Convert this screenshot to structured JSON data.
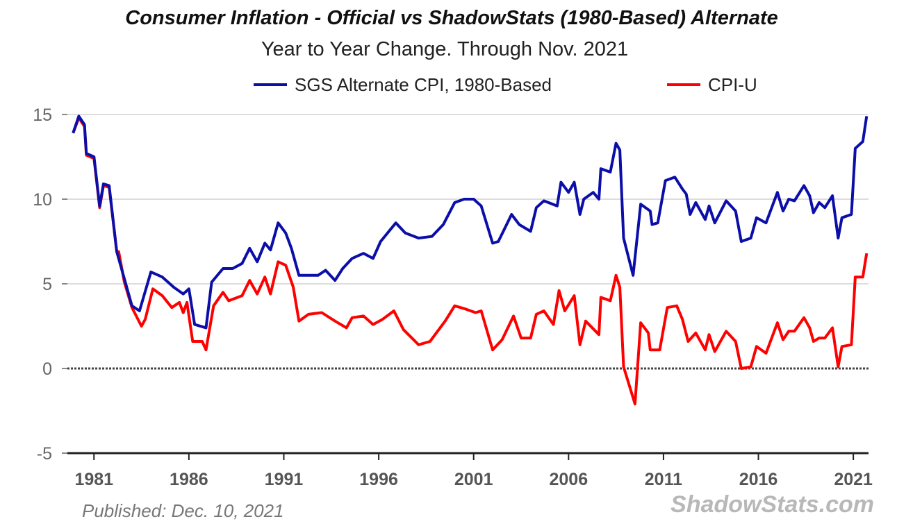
{
  "chart_data": {
    "type": "line",
    "title": "Consumer Inflation - Official vs ShadowStats (1980-Based) Alternate",
    "subtitle": "Year to Year Change. Through Nov. 2021",
    "xlabel": "",
    "ylabel": "",
    "xlim": [
      1979.6,
      2021.8
    ],
    "ylim": [
      -5,
      15
    ],
    "x_ticks": [
      1981,
      1986,
      1991,
      1996,
      2001,
      2006,
      2011,
      2016,
      2021
    ],
    "y_ticks": [
      -5,
      0,
      5,
      10,
      15
    ],
    "grid": "horizontal",
    "legend_position": "top",
    "footer_left": "Published: Dec. 10, 2021",
    "footer_right": "ShadowStats.com",
    "series": [
      {
        "name": "SGS Alternate CPI, 1980-Based",
        "color": "#0b0fa8",
        "points": [
          [
            1979.9,
            13.9
          ],
          [
            1980.2,
            14.9
          ],
          [
            1980.5,
            14.4
          ],
          [
            1980.6,
            12.7
          ],
          [
            1981.0,
            12.5
          ],
          [
            1981.3,
            9.6
          ],
          [
            1981.5,
            10.9
          ],
          [
            1981.8,
            10.8
          ],
          [
            1982.2,
            6.9
          ],
          [
            1983.0,
            3.7
          ],
          [
            1983.4,
            3.4
          ],
          [
            1984.0,
            5.7
          ],
          [
            1984.6,
            5.4
          ],
          [
            1985.2,
            4.8
          ],
          [
            1985.7,
            4.4
          ],
          [
            1986.0,
            4.7
          ],
          [
            1986.3,
            2.6
          ],
          [
            1986.9,
            2.4
          ],
          [
            1987.2,
            5.1
          ],
          [
            1987.8,
            5.9
          ],
          [
            1988.3,
            5.9
          ],
          [
            1988.8,
            6.2
          ],
          [
            1989.2,
            7.1
          ],
          [
            1989.6,
            6.3
          ],
          [
            1990.0,
            7.4
          ],
          [
            1990.3,
            7.0
          ],
          [
            1990.7,
            8.6
          ],
          [
            1991.1,
            8.0
          ],
          [
            1991.4,
            7.1
          ],
          [
            1991.8,
            5.5
          ],
          [
            1992.3,
            5.5
          ],
          [
            1992.8,
            5.5
          ],
          [
            1993.2,
            5.8
          ],
          [
            1993.7,
            5.2
          ],
          [
            1994.1,
            5.9
          ],
          [
            1994.6,
            6.5
          ],
          [
            1995.2,
            6.8
          ],
          [
            1995.7,
            6.5
          ],
          [
            1996.1,
            7.5
          ],
          [
            1996.9,
            8.6
          ],
          [
            1997.4,
            8.0
          ],
          [
            1998.1,
            7.7
          ],
          [
            1998.8,
            7.8
          ],
          [
            1999.4,
            8.5
          ],
          [
            2000.0,
            9.8
          ],
          [
            2000.5,
            10.0
          ],
          [
            2001.0,
            10.0
          ],
          [
            2001.4,
            9.6
          ],
          [
            2002.0,
            7.4
          ],
          [
            2002.3,
            7.5
          ],
          [
            2003.0,
            9.1
          ],
          [
            2003.4,
            8.5
          ],
          [
            2004.0,
            8.1
          ],
          [
            2004.3,
            9.5
          ],
          [
            2004.7,
            9.9
          ],
          [
            2005.4,
            9.6
          ],
          [
            2005.6,
            11.0
          ],
          [
            2006.0,
            10.4
          ],
          [
            2006.3,
            11.0
          ],
          [
            2006.6,
            9.1
          ],
          [
            2006.8,
            10.0
          ],
          [
            2007.3,
            10.4
          ],
          [
            2007.6,
            10.0
          ],
          [
            2007.7,
            11.8
          ],
          [
            2008.2,
            11.6
          ],
          [
            2008.5,
            13.3
          ],
          [
            2008.7,
            12.9
          ],
          [
            2008.9,
            7.7
          ],
          [
            2009.4,
            5.5
          ],
          [
            2009.8,
            9.7
          ],
          [
            2010.3,
            9.3
          ],
          [
            2010.4,
            8.5
          ],
          [
            2010.7,
            8.6
          ],
          [
            2011.1,
            11.1
          ],
          [
            2011.6,
            11.3
          ],
          [
            2012.0,
            10.6
          ],
          [
            2012.2,
            10.3
          ],
          [
            2012.4,
            9.1
          ],
          [
            2012.7,
            9.8
          ],
          [
            2013.2,
            8.8
          ],
          [
            2013.4,
            9.6
          ],
          [
            2013.7,
            8.6
          ],
          [
            2014.3,
            9.9
          ],
          [
            2014.8,
            9.3
          ],
          [
            2015.1,
            7.5
          ],
          [
            2015.6,
            7.7
          ],
          [
            2015.9,
            8.9
          ],
          [
            2016.4,
            8.6
          ],
          [
            2017.0,
            10.4
          ],
          [
            2017.3,
            9.3
          ],
          [
            2017.6,
            10.0
          ],
          [
            2017.9,
            9.9
          ],
          [
            2018.4,
            10.8
          ],
          [
            2018.7,
            10.2
          ],
          [
            2018.9,
            9.2
          ],
          [
            2019.2,
            9.8
          ],
          [
            2019.5,
            9.5
          ],
          [
            2019.9,
            10.2
          ],
          [
            2020.2,
            7.7
          ],
          [
            2020.4,
            8.9
          ],
          [
            2020.9,
            9.1
          ],
          [
            2021.1,
            13.0
          ],
          [
            2021.5,
            13.4
          ],
          [
            2021.7,
            14.9
          ]
        ]
      },
      {
        "name": "CPI-U",
        "color": "#ff0000",
        "points": [
          [
            1979.9,
            13.9
          ],
          [
            1980.2,
            14.8
          ],
          [
            1980.5,
            14.3
          ],
          [
            1980.6,
            12.6
          ],
          [
            1981.0,
            12.4
          ],
          [
            1981.3,
            9.5
          ],
          [
            1981.5,
            10.8
          ],
          [
            1981.8,
            10.7
          ],
          [
            1982.2,
            6.9
          ],
          [
            1982.3,
            6.9
          ],
          [
            1982.6,
            5.1
          ],
          [
            1983.0,
            3.6
          ],
          [
            1983.5,
            2.5
          ],
          [
            1983.7,
            2.9
          ],
          [
            1984.1,
            4.7
          ],
          [
            1984.6,
            4.3
          ],
          [
            1985.1,
            3.6
          ],
          [
            1985.5,
            3.9
          ],
          [
            1985.7,
            3.3
          ],
          [
            1985.9,
            3.9
          ],
          [
            1986.2,
            1.6
          ],
          [
            1986.7,
            1.6
          ],
          [
            1986.9,
            1.1
          ],
          [
            1987.3,
            3.7
          ],
          [
            1987.8,
            4.5
          ],
          [
            1988.1,
            4.0
          ],
          [
            1988.8,
            4.3
          ],
          [
            1989.2,
            5.2
          ],
          [
            1989.6,
            4.4
          ],
          [
            1990.0,
            5.4
          ],
          [
            1990.3,
            4.4
          ],
          [
            1990.7,
            6.3
          ],
          [
            1991.1,
            6.1
          ],
          [
            1991.5,
            4.8
          ],
          [
            1991.8,
            2.8
          ],
          [
            1992.3,
            3.2
          ],
          [
            1993.0,
            3.3
          ],
          [
            1993.7,
            2.8
          ],
          [
            1994.3,
            2.4
          ],
          [
            1994.6,
            3.0
          ],
          [
            1995.2,
            3.1
          ],
          [
            1995.7,
            2.6
          ],
          [
            1996.2,
            2.9
          ],
          [
            1996.8,
            3.4
          ],
          [
            1997.3,
            2.3
          ],
          [
            1998.1,
            1.4
          ],
          [
            1998.7,
            1.6
          ],
          [
            1999.1,
            2.2
          ],
          [
            1999.5,
            2.8
          ],
          [
            2000.0,
            3.7
          ],
          [
            2000.6,
            3.5
          ],
          [
            2001.1,
            3.3
          ],
          [
            2001.4,
            3.4
          ],
          [
            2002.0,
            1.1
          ],
          [
            2002.5,
            1.7
          ],
          [
            2003.1,
            3.1
          ],
          [
            2003.5,
            1.8
          ],
          [
            2004.0,
            1.8
          ],
          [
            2004.3,
            3.2
          ],
          [
            2004.7,
            3.4
          ],
          [
            2005.2,
            2.6
          ],
          [
            2005.5,
            4.6
          ],
          [
            2005.8,
            3.4
          ],
          [
            2006.3,
            4.3
          ],
          [
            2006.6,
            1.4
          ],
          [
            2006.9,
            2.8
          ],
          [
            2007.6,
            2.0
          ],
          [
            2007.7,
            4.2
          ],
          [
            2008.2,
            4.0
          ],
          [
            2008.5,
            5.5
          ],
          [
            2008.7,
            4.8
          ],
          [
            2008.9,
            0.1
          ],
          [
            2009.5,
            -2.1
          ],
          [
            2009.8,
            2.7
          ],
          [
            2010.2,
            2.1
          ],
          [
            2010.3,
            1.1
          ],
          [
            2010.8,
            1.1
          ],
          [
            2011.2,
            3.6
          ],
          [
            2011.7,
            3.7
          ],
          [
            2012.0,
            2.9
          ],
          [
            2012.3,
            1.6
          ],
          [
            2012.7,
            2.1
          ],
          [
            2013.2,
            1.1
          ],
          [
            2013.4,
            2.0
          ],
          [
            2013.7,
            1.0
          ],
          [
            2014.3,
            2.2
          ],
          [
            2014.8,
            1.6
          ],
          [
            2015.1,
            0.0
          ],
          [
            2015.6,
            0.1
          ],
          [
            2015.9,
            1.3
          ],
          [
            2016.4,
            0.9
          ],
          [
            2017.0,
            2.7
          ],
          [
            2017.3,
            1.7
          ],
          [
            2017.6,
            2.2
          ],
          [
            2017.9,
            2.2
          ],
          [
            2018.4,
            3.0
          ],
          [
            2018.7,
            2.4
          ],
          [
            2018.9,
            1.6
          ],
          [
            2019.2,
            1.8
          ],
          [
            2019.5,
            1.8
          ],
          [
            2019.9,
            2.4
          ],
          [
            2020.2,
            0.1
          ],
          [
            2020.4,
            1.3
          ],
          [
            2020.9,
            1.4
          ],
          [
            2021.1,
            5.4
          ],
          [
            2021.5,
            5.4
          ],
          [
            2021.7,
            6.8
          ]
        ]
      }
    ]
  }
}
